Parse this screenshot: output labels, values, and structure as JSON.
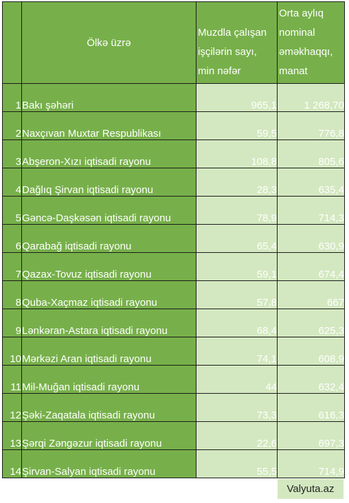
{
  "table": {
    "headers": {
      "region": "Ölkə üzrə",
      "employees": "Muzdla çalışan işçilərin sayı, min nəfər",
      "salary": "Orta aylıq nominal əməkhaqqı, manat"
    },
    "rows": [
      {
        "num": "1",
        "name": "Bakı şəhəri",
        "employees": "965,1",
        "salary": "1 268,70"
      },
      {
        "num": "2",
        "name": "Naxçıvan Muxtar Respublikası",
        "employees": "59,5",
        "salary": "776,8"
      },
      {
        "num": "3",
        "name": "Abşeron-Xızı iqtisadi rayonu",
        "employees": "108,8",
        "salary": "805,6"
      },
      {
        "num": "4",
        "name": "Dağlıq Şirvan iqtisadi rayonu",
        "employees": "28,3",
        "salary": "635,4"
      },
      {
        "num": "5",
        "name": "Gəncə-Daşkəsən iqtisadi rayonu",
        "employees": "78,9",
        "salary": "714,3"
      },
      {
        "num": "6",
        "name": "Qarabağ iqtisadi rayonu",
        "employees": "65,4",
        "salary": "630,9"
      },
      {
        "num": "7",
        "name": "Qazax-Tovuz iqtisadi rayonu",
        "employees": "59,1",
        "salary": "674,4"
      },
      {
        "num": "8",
        "name": "Quba-Xaçmaz iqtisadi rayonu",
        "employees": "57,8",
        "salary": "667"
      },
      {
        "num": "9",
        "name": "Lənkəran-Astara iqtisadi rayonu",
        "employees": "68,4",
        "salary": "625,3"
      },
      {
        "num": "10",
        "name": "Mərkəzi Aran iqtisadi rayonu",
        "employees": "74,1",
        "salary": "608,9"
      },
      {
        "num": "11",
        "name": "Mil-Muğan iqtisadi rayonu",
        "employees": "44",
        "salary": "632,4"
      },
      {
        "num": "12",
        "name": "Şəki-Zaqatala iqtisadi rayonu",
        "employees": "73,3",
        "salary": "616,3"
      },
      {
        "num": "13",
        "name": "Şərqi Zəngəzur iqtisadi rayonu",
        "employees": "22,6",
        "salary": "697,3"
      },
      {
        "num": "14",
        "name": "Şirvan-Salyan iqtisadi rayonu",
        "employees": "55,5",
        "salary": "714,9"
      }
    ]
  },
  "credit": "Valyuta.az",
  "colors": {
    "header_green": "#77b04a",
    "value_light_green": "#d3e8c0"
  }
}
